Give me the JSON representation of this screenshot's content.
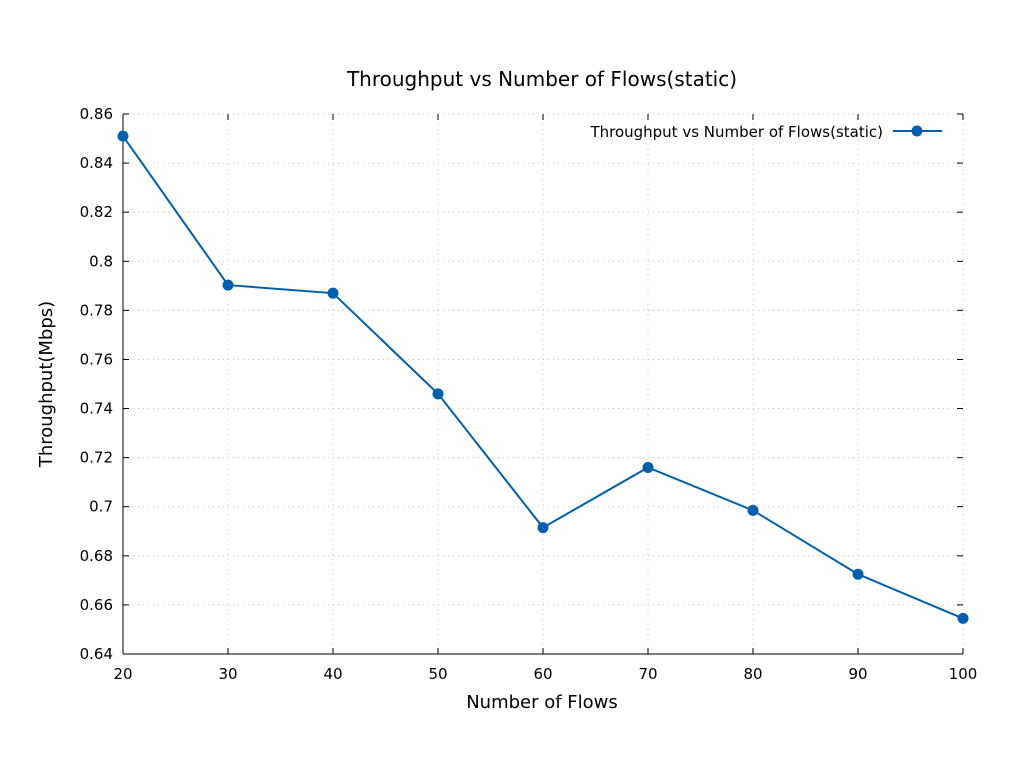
{
  "chart_data": {
    "type": "line",
    "title": "Throughput vs Number of Flows(static)",
    "xlabel": "Number of Flows",
    "ylabel": "Throughput(Mbps)",
    "xlim": [
      20,
      100
    ],
    "ylim": [
      0.64,
      0.86
    ],
    "xticks": [
      "20",
      "30",
      "40",
      "50",
      "60",
      "70",
      "80",
      "90",
      "100"
    ],
    "yticks": [
      "0.64",
      "0.66",
      "0.68",
      "0.7",
      "0.72",
      "0.74",
      "0.76",
      "0.78",
      "0.8",
      "0.82",
      "0.84",
      "0.86"
    ],
    "grid": true,
    "legend_position": "top-right",
    "series": [
      {
        "name": "Throughput vs Number of Flows(static)",
        "color": "#005fad",
        "marker": "circle",
        "x": [
          20,
          30,
          40,
          50,
          60,
          70,
          80,
          90,
          100
        ],
        "y": [
          0.851,
          0.7903,
          0.787,
          0.746,
          0.6915,
          0.716,
          0.6985,
          0.6725,
          0.6545
        ]
      }
    ]
  }
}
